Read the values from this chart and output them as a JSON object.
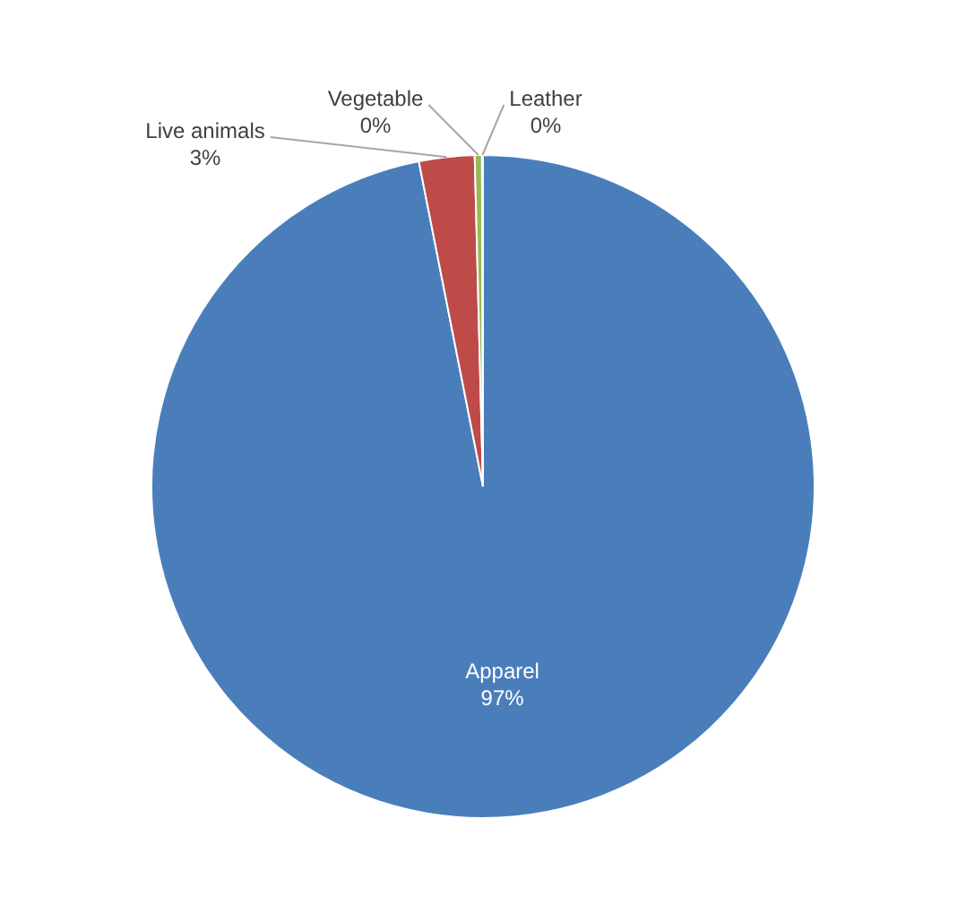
{
  "chart_data": {
    "type": "pie",
    "categories": [
      "Apparel",
      "Live animals",
      "Vegetable",
      "Leather"
    ],
    "values": [
      96.9,
      2.7,
      0.35,
      0.05
    ],
    "colors": [
      "#4a7ebb",
      "#be4b48",
      "#98b954",
      "#7d60a0"
    ],
    "value_labels": [
      "97%",
      "3%",
      "0%",
      "0%"
    ],
    "legend": false
  }
}
